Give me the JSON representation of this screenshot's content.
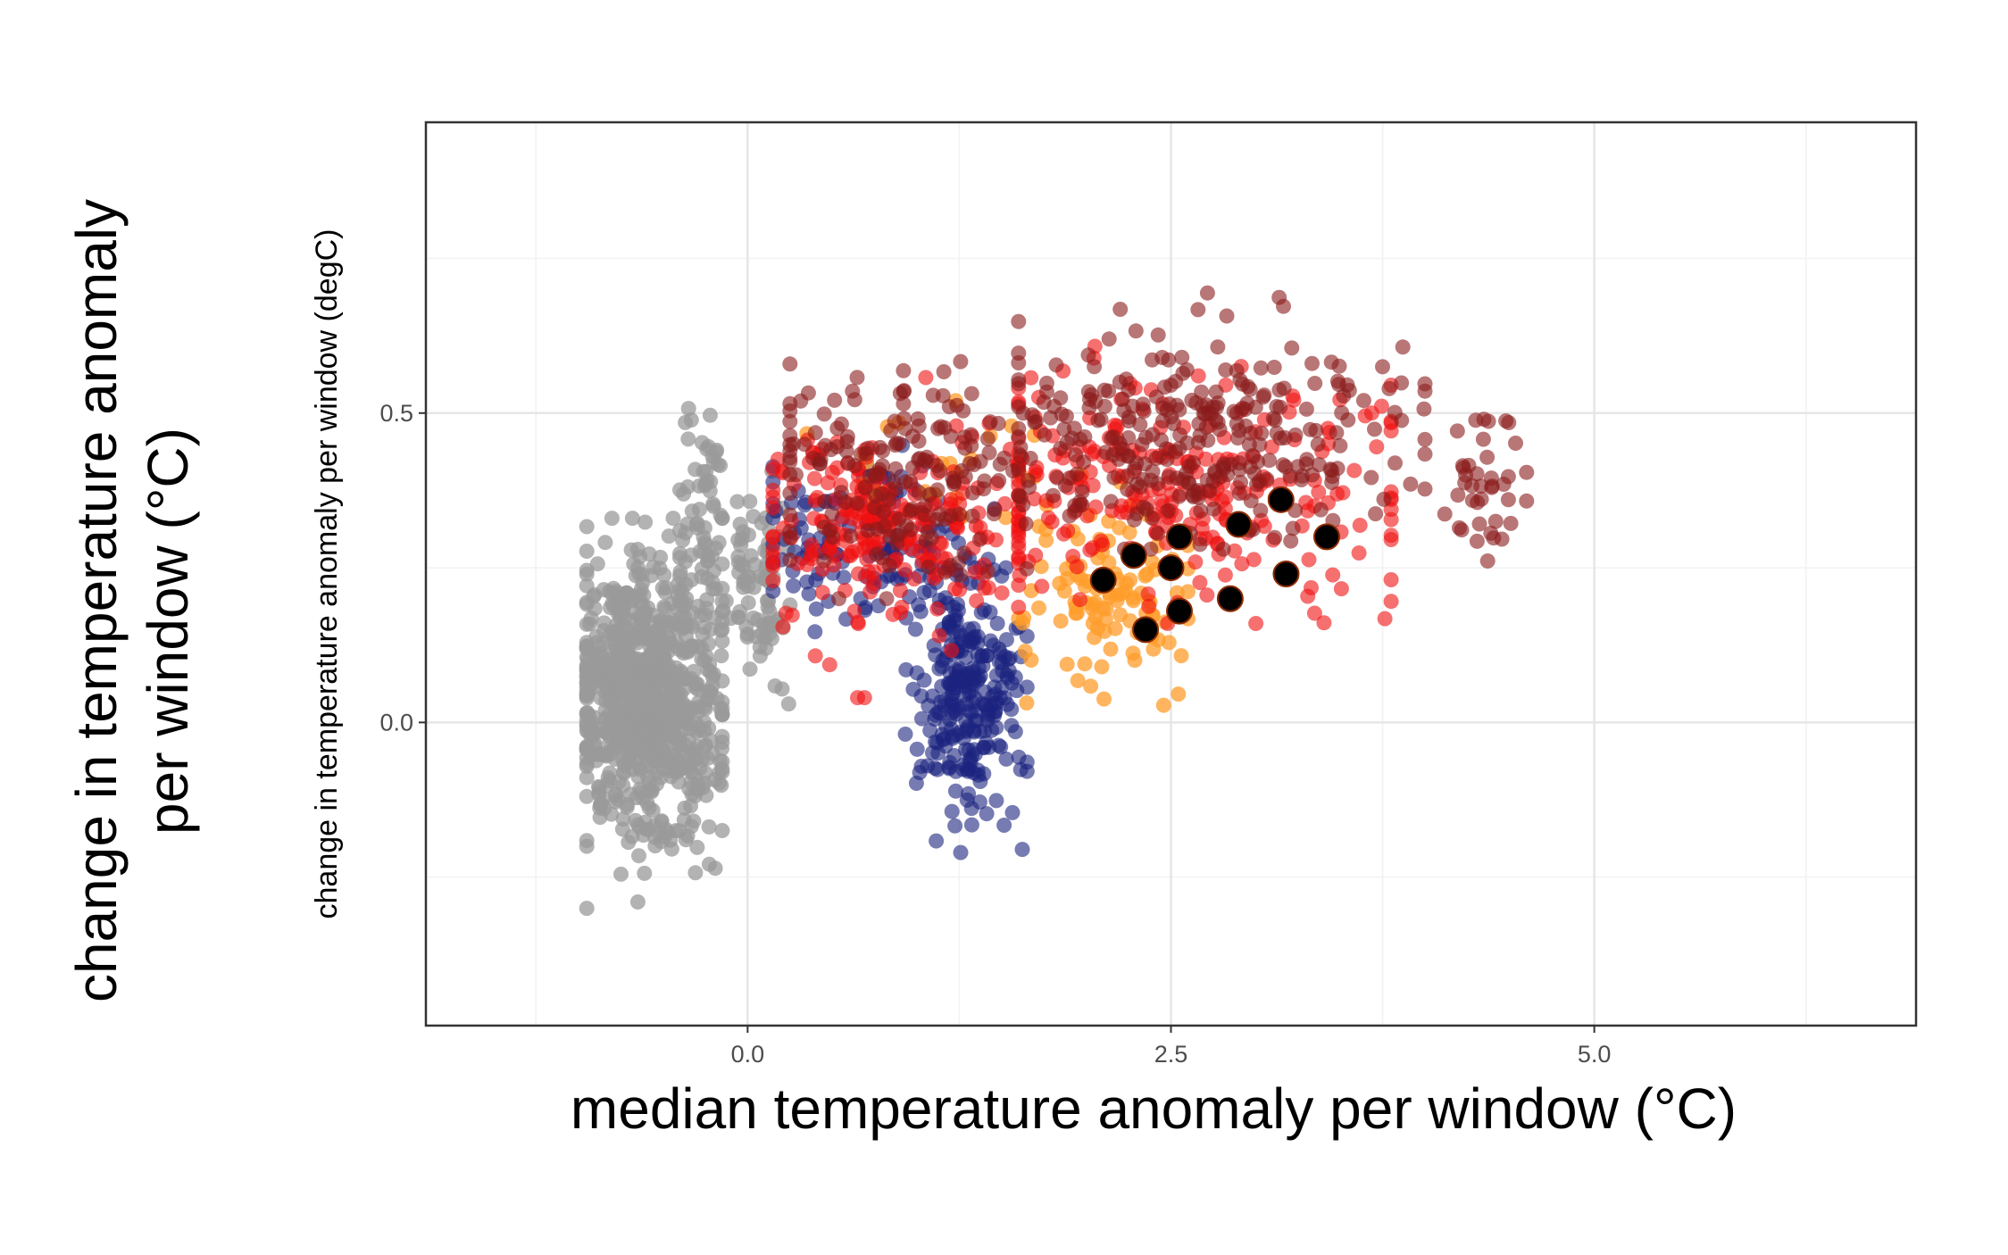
{
  "chart_data": {
    "type": "scatter",
    "title": "",
    "xlabel": "median temperature anomaly per window (°C)",
    "ylabel_outer_line1": "change in temperature anomaly",
    "ylabel_outer_line2": "per window (°C)",
    "ylabel_inner": "change in temperature anomaly per window (degC)",
    "xlim": [
      -1.9,
      6.9
    ],
    "ylim": [
      -0.49,
      0.97
    ],
    "x_ticks": [
      0.0,
      2.5,
      5.0
    ],
    "x_tick_labels": [
      "0.0",
      "2.5",
      "5.0"
    ],
    "y_ticks": [
      0.0,
      0.5
    ],
    "y_tick_labels": [
      "0.0",
      "0.5"
    ],
    "x_minor_gridlines": [
      -1.25,
      1.25,
      3.75,
      6.25
    ],
    "y_minor_gridlines": [
      -0.25,
      0.25,
      0.75
    ],
    "grid": true,
    "legend": "none",
    "series": [
      {
        "color": "#999999",
        "marker_alpha": 0.75,
        "clusters": [
          {
            "count": 820,
            "x_mean": -0.6,
            "x_sd": 0.22,
            "y_mean": 0.03,
            "y_sd": 0.11,
            "x_range": [
              -0.95,
              -0.15
            ],
            "y_range": [
              -0.33,
              0.33
            ]
          },
          {
            "count": 70,
            "x_mean": -0.25,
            "x_sd": 0.07,
            "y_mean": 0.33,
            "y_sd": 0.1,
            "x_range": [
              -0.4,
              -0.1
            ],
            "y_range": [
              0.05,
              0.63
            ]
          },
          {
            "count": 80,
            "x_mean": 0.08,
            "x_sd": 0.08,
            "y_mean": 0.24,
            "y_sd": 0.08,
            "x_range": [
              -0.15,
              0.25
            ],
            "y_range": [
              0.03,
              0.42
            ]
          }
        ]
      },
      {
        "color": "#1a237e",
        "marker_alpha": 0.6,
        "clusters": [
          {
            "count": 260,
            "x_mean": 1.3,
            "x_sd": 0.15,
            "y_mean": 0.05,
            "y_sd": 0.1,
            "x_range": [
              0.85,
              1.65
            ],
            "y_range": [
              -0.24,
              0.25
            ]
          },
          {
            "count": 140,
            "x_mean": 0.7,
            "x_sd": 0.35,
            "y_mean": 0.3,
            "y_sd": 0.07,
            "x_range": [
              0.15,
              1.5
            ],
            "y_range": [
              0.1,
              0.52
            ]
          }
        ]
      },
      {
        "color": "#ff9c2a",
        "marker_alpha": 0.75,
        "clusters": [
          {
            "count": 110,
            "x_mean": 2.15,
            "x_sd": 0.25,
            "y_mean": 0.2,
            "y_sd": 0.09,
            "x_range": [
              1.6,
              2.6
            ],
            "y_range": [
              -0.09,
              0.4
            ]
          },
          {
            "count": 25,
            "x_mean": 1.1,
            "x_sd": 0.5,
            "y_mean": 0.4,
            "y_sd": 0.06,
            "x_range": [
              0.35,
              1.9
            ],
            "y_range": [
              0.28,
              0.52
            ]
          }
        ]
      },
      {
        "color": "#f01010",
        "marker_alpha": 0.6,
        "clusters": [
          {
            "count": 230,
            "x_mean": 0.8,
            "x_sd": 0.4,
            "y_mean": 0.32,
            "y_sd": 0.08,
            "x_range": [
              0.15,
              1.7
            ],
            "y_range": [
              0.04,
              0.56
            ]
          },
          {
            "count": 260,
            "x_mean": 2.5,
            "x_sd": 0.65,
            "y_mean": 0.38,
            "y_sd": 0.09,
            "x_range": [
              1.6,
              3.8
            ],
            "y_range": [
              0.16,
              0.66
            ]
          }
        ]
      },
      {
        "color": "#8b1a1a",
        "marker_alpha": 0.6,
        "clusters": [
          {
            "count": 180,
            "x_mean": 0.9,
            "x_sd": 0.45,
            "y_mean": 0.4,
            "y_sd": 0.08,
            "x_range": [
              0.25,
              1.9
            ],
            "y_range": [
              0.2,
              0.65
            ]
          },
          {
            "count": 300,
            "x_mean": 2.7,
            "x_sd": 0.65,
            "y_mean": 0.46,
            "y_sd": 0.08,
            "x_range": [
              1.6,
              4.0
            ],
            "y_range": [
              0.28,
              0.76
            ]
          },
          {
            "count": 40,
            "x_mean": 4.35,
            "x_sd": 0.12,
            "y_mean": 0.38,
            "y_sd": 0.07,
            "x_range": [
              4.1,
              4.6
            ],
            "y_range": [
              0.16,
              0.49
            ]
          }
        ]
      }
    ],
    "highlight_points": {
      "color": "#000000",
      "edge_color": "#8b2a00",
      "points": [
        {
          "x": 2.1,
          "y": 0.23
        },
        {
          "x": 2.28,
          "y": 0.27
        },
        {
          "x": 2.35,
          "y": 0.15
        },
        {
          "x": 2.5,
          "y": 0.25
        },
        {
          "x": 2.55,
          "y": 0.3
        },
        {
          "x": 2.55,
          "y": 0.18
        },
        {
          "x": 2.85,
          "y": 0.2
        },
        {
          "x": 2.9,
          "y": 0.32
        },
        {
          "x": 3.15,
          "y": 0.36
        },
        {
          "x": 3.18,
          "y": 0.24
        },
        {
          "x": 3.42,
          "y": 0.3
        }
      ]
    }
  }
}
